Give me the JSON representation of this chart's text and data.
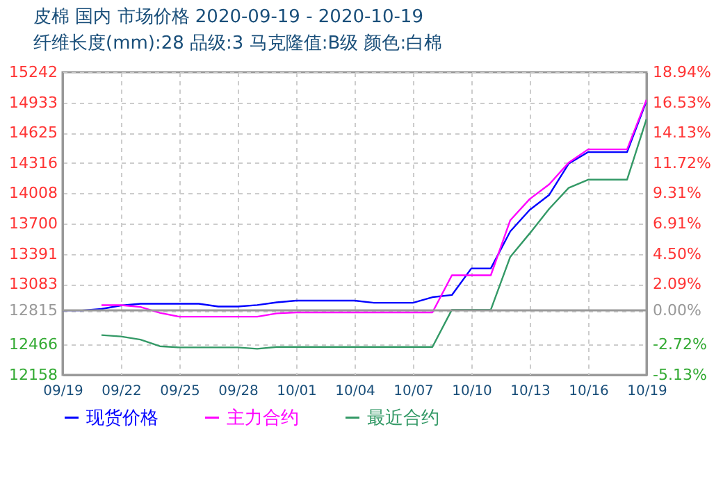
{
  "chart_data": {
    "type": "line",
    "title": "皮棉 国内 市场价格 2020-09-19 - 2020-10-19",
    "subtitle": "纤维长度(mm):28 品级:3 马克隆值:B级 颜色:白棉",
    "x": [
      "2020-09-19",
      "2020-09-20",
      "2020-09-21",
      "2020-09-22",
      "2020-09-23",
      "2020-09-24",
      "2020-09-25",
      "2020-09-26",
      "2020-09-27",
      "2020-09-28",
      "2020-09-29",
      "2020-09-30",
      "2020-10-01",
      "2020-10-02",
      "2020-10-03",
      "2020-10-04",
      "2020-10-05",
      "2020-10-06",
      "2020-10-07",
      "2020-10-08",
      "2020-10-09",
      "2020-10-10",
      "2020-10-11",
      "2020-10-12",
      "2020-10-13",
      "2020-10-14",
      "2020-10-15",
      "2020-10-16",
      "2020-10-17",
      "2020-10-18",
      "2020-10-19"
    ],
    "series": [
      {
        "name": "现货价格",
        "color": "#0000ff",
        "values": [
          12815,
          12815,
          12830,
          12865,
          12883,
          12883,
          12883,
          12883,
          12855,
          12855,
          12870,
          12897,
          12915,
          12915,
          12915,
          12915,
          12893,
          12893,
          12893,
          12950,
          12972,
          13243,
          13243,
          13620,
          13840,
          13992,
          14310,
          14428,
          14428,
          14428,
          14950
        ]
      },
      {
        "name": "主力合约",
        "color": "#ff00ff",
        "values": [
          null,
          null,
          12869,
          12869,
          12850,
          12790,
          12751,
          12751,
          12751,
          12751,
          12751,
          12785,
          12795,
          12795,
          12795,
          12795,
          12795,
          12795,
          12795,
          12795,
          13173,
          13173,
          13173,
          13734,
          13950,
          14100,
          14320,
          14456,
          14456,
          14456,
          14961
        ]
      },
      {
        "name": "最近合约",
        "color": "#339966",
        "values": [
          null,
          null,
          12564,
          12550,
          12518,
          12450,
          12438,
          12438,
          12438,
          12438,
          12424,
          12443,
          12443,
          12443,
          12443,
          12443,
          12443,
          12443,
          12443,
          12443,
          12822,
          12822,
          12822,
          13361,
          13600,
          13850,
          14063,
          14147,
          14147,
          14147,
          14765
        ]
      }
    ],
    "xlim": [
      "2020-09-19",
      "2020-10-19"
    ],
    "xticks": [
      {
        "value": "2020-09-19",
        "label": "09/19"
      },
      {
        "value": "2020-09-22",
        "label": "09/22"
      },
      {
        "value": "2020-09-25",
        "label": "09/25"
      },
      {
        "value": "2020-09-28",
        "label": "09/28"
      },
      {
        "value": "2020-10-01",
        "label": "10/01"
      },
      {
        "value": "2020-10-04",
        "label": "10/04"
      },
      {
        "value": "2020-10-07",
        "label": "10/07"
      },
      {
        "value": "2020-10-10",
        "label": "10/10"
      },
      {
        "value": "2020-10-13",
        "label": "10/13"
      },
      {
        "value": "2020-10-16",
        "label": "10/16"
      },
      {
        "value": "2020-10-19",
        "label": "10/19"
      }
    ],
    "ylim": [
      12158,
      15242
    ],
    "yticks": [
      12158,
      12466,
      12815,
      13083,
      13391,
      13700,
      14008,
      14316,
      14625,
      14933,
      15242
    ],
    "y2lim": [
      -5.13,
      18.94
    ],
    "y2ticks": [
      {
        "value": -5.13,
        "label": "-5.13%"
      },
      {
        "value": -2.72,
        "label": "-2.72%"
      },
      {
        "value": 0,
        "label": "0.00%"
      },
      {
        "value": 2.09,
        "label": "2.09%"
      },
      {
        "value": 4.5,
        "label": "4.50%"
      },
      {
        "value": 6.91,
        "label": "6.91%"
      },
      {
        "value": 9.31,
        "label": "9.31%"
      },
      {
        "value": 11.72,
        "label": "11.72%"
      },
      {
        "value": 14.13,
        "label": "14.13%"
      },
      {
        "value": 16.53,
        "label": "16.53%"
      },
      {
        "value": 18.94,
        "label": "18.94%"
      }
    ],
    "ref_lines": [
      {
        "axis": "y2",
        "value": 0,
        "color": "#999999"
      }
    ],
    "grid": true,
    "legend": "bottom",
    "marker": "none",
    "line_style": "solid"
  }
}
